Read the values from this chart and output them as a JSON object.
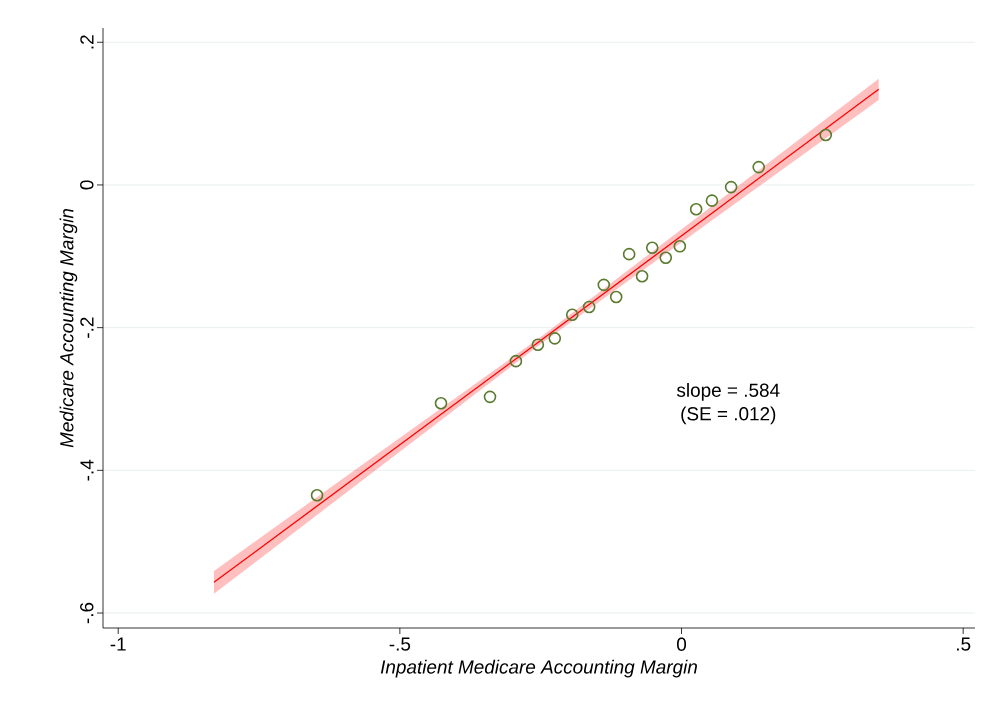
{
  "chart_data": {
    "type": "scatter",
    "xlabel": "Inpatient Medicare Accounting Margin",
    "ylabel": "Medicare Accounting Margin",
    "annotations": [
      "slope = .584",
      "(SE = .012)"
    ],
    "xlim": [
      -1.027,
      0.521
    ],
    "ylim": [
      -0.621,
      0.22
    ],
    "xticks": [
      -1,
      {
        "value": -0.5,
        "label": "-.5"
      },
      0,
      {
        "value": 0.5,
        "label": ".5"
      }
    ],
    "yticks": [
      {
        "value": 0.2,
        "label": ".2"
      },
      0,
      {
        "value": -0.2,
        "label": "-.2"
      },
      {
        "value": -0.4,
        "label": "-.4"
      },
      {
        "value": -0.6,
        "label": "-.6"
      }
    ],
    "grid": "y",
    "marker": "circle",
    "series": [
      {
        "type": "line",
        "color": "#ff0000",
        "marker": "none",
        "x": [
          -0.83,
          -0.25,
          0.35
        ],
        "values": [
          -0.557,
          -0.218,
          0.134
        ],
        "lower": [
          -0.573,
          -0.223,
          0.119
        ],
        "upper": [
          -0.541,
          -0.213,
          0.149
        ]
      },
      {
        "color": "#5a7a2e",
        "x": [
          -0.647,
          -0.427,
          -0.34,
          -0.294,
          -0.255,
          -0.225,
          -0.194,
          -0.164,
          -0.138,
          -0.116,
          -0.093,
          -0.07,
          -0.052,
          -0.028,
          -0.003,
          0.026,
          0.054,
          0.088,
          0.137,
          0.256
        ],
        "values": [
          -0.435,
          -0.306,
          -0.297,
          -0.247,
          -0.224,
          -0.215,
          -0.182,
          -0.171,
          -0.14,
          -0.157,
          -0.097,
          -0.128,
          -0.088,
          -0.102,
          -0.086,
          -0.034,
          -0.022,
          -0.003,
          0.025,
          0.07
        ]
      }
    ]
  }
}
